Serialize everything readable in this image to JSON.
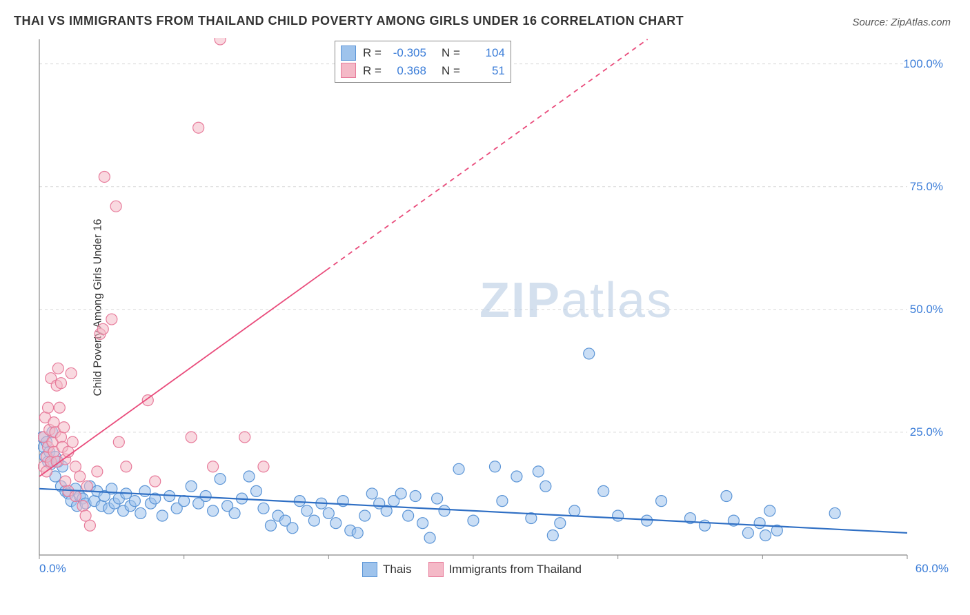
{
  "title": "THAI VS IMMIGRANTS FROM THAILAND CHILD POVERTY AMONG GIRLS UNDER 16 CORRELATION CHART",
  "source": "Source: ZipAtlas.com",
  "ylabel": "Child Poverty Among Girls Under 16",
  "watermark": {
    "bold": "ZIP",
    "thin": "atlas"
  },
  "chart": {
    "type": "scatter",
    "xlim": [
      0,
      60
    ],
    "ylim": [
      0,
      105
    ],
    "yticks": [
      25,
      50,
      75,
      100
    ],
    "ytick_labels": [
      "25.0%",
      "50.0%",
      "75.0%",
      "100.0%"
    ],
    "xticks": [
      0,
      10,
      20,
      30,
      40,
      50,
      60
    ],
    "xtick_labels": [
      "0.0%",
      "",
      "",
      "",
      "",
      "",
      "60.0%"
    ],
    "grid_color": "#d9d9d9",
    "grid_dash": "4,4",
    "axis_color": "#888888",
    "background_color": "#ffffff",
    "marker_radius": 8,
    "marker_opacity": 0.55,
    "series": [
      {
        "name": "Thais",
        "color_fill": "#9ec3ec",
        "color_stroke": "#5a94d6",
        "trend": {
          "y_at_x0": 13.5,
          "y_at_xmax": 4.5,
          "dash": "none",
          "width": 2.2,
          "color": "#2f6fc4"
        },
        "points": [
          [
            0.2,
            24
          ],
          [
            0.3,
            22
          ],
          [
            0.4,
            20
          ],
          [
            0.5,
            23
          ],
          [
            0.6,
            19
          ],
          [
            0.7,
            21
          ],
          [
            0.8,
            18.5
          ],
          [
            0.9,
            25
          ],
          [
            1.1,
            20
          ],
          [
            1.1,
            16
          ],
          [
            1.3,
            19
          ],
          [
            1.5,
            14
          ],
          [
            1.6,
            18
          ],
          [
            1.8,
            13
          ],
          [
            2.0,
            12.5
          ],
          [
            2.2,
            11
          ],
          [
            2.5,
            13.5
          ],
          [
            2.6,
            10
          ],
          [
            2.8,
            12
          ],
          [
            3.0,
            11.5
          ],
          [
            3.2,
            10.5
          ],
          [
            3.5,
            14
          ],
          [
            3.8,
            11
          ],
          [
            4.0,
            13
          ],
          [
            4.3,
            10
          ],
          [
            4.5,
            12
          ],
          [
            4.8,
            9.5
          ],
          [
            5.0,
            13.5
          ],
          [
            5.2,
            10.5
          ],
          [
            5.5,
            11.5
          ],
          [
            5.8,
            9
          ],
          [
            6.0,
            12.5
          ],
          [
            6.3,
            10
          ],
          [
            6.6,
            11
          ],
          [
            7.0,
            8.5
          ],
          [
            7.3,
            13
          ],
          [
            7.7,
            10.5
          ],
          [
            8.0,
            11.5
          ],
          [
            8.5,
            8
          ],
          [
            9.0,
            12
          ],
          [
            9.5,
            9.5
          ],
          [
            10,
            11
          ],
          [
            10.5,
            14
          ],
          [
            11,
            10.5
          ],
          [
            11.5,
            12
          ],
          [
            12,
            9
          ],
          [
            12.5,
            15.5
          ],
          [
            13,
            10
          ],
          [
            13.5,
            8.5
          ],
          [
            14,
            11.5
          ],
          [
            14.5,
            16
          ],
          [
            15,
            13
          ],
          [
            15.5,
            9.5
          ],
          [
            16,
            6
          ],
          [
            16.5,
            8
          ],
          [
            17,
            7
          ],
          [
            17.5,
            5.5
          ],
          [
            18,
            11
          ],
          [
            18.5,
            9
          ],
          [
            19,
            7
          ],
          [
            19.5,
            10.5
          ],
          [
            20,
            8.5
          ],
          [
            20.5,
            6.5
          ],
          [
            21,
            11
          ],
          [
            21.5,
            5
          ],
          [
            22,
            4.5
          ],
          [
            22.5,
            8
          ],
          [
            23,
            12.5
          ],
          [
            23.5,
            10.5
          ],
          [
            24,
            9
          ],
          [
            24.5,
            11
          ],
          [
            25,
            12.5
          ],
          [
            25.5,
            8
          ],
          [
            26,
            12
          ],
          [
            26.5,
            6.5
          ],
          [
            27,
            3.5
          ],
          [
            27.5,
            11.5
          ],
          [
            28,
            9
          ],
          [
            29,
            17.5
          ],
          [
            30,
            7
          ],
          [
            31.5,
            18
          ],
          [
            32,
            11
          ],
          [
            33,
            16
          ],
          [
            34,
            7.5
          ],
          [
            34.5,
            17
          ],
          [
            35,
            14
          ],
          [
            35.5,
            4
          ],
          [
            36,
            6.5
          ],
          [
            37,
            9
          ],
          [
            38,
            41
          ],
          [
            39,
            13
          ],
          [
            40,
            8
          ],
          [
            42,
            7
          ],
          [
            43,
            11
          ],
          [
            45,
            7.5
          ],
          [
            46,
            6
          ],
          [
            47.5,
            12
          ],
          [
            48,
            7
          ],
          [
            49,
            4.5
          ],
          [
            49.8,
            6.5
          ],
          [
            50.2,
            4
          ],
          [
            50.5,
            9
          ],
          [
            51,
            5
          ],
          [
            55,
            8.5
          ]
        ]
      },
      {
        "name": "Immigrants from Thailand",
        "color_fill": "#f4b9c7",
        "color_stroke": "#e77a9a",
        "trend": {
          "y_at_x0": 16,
          "y_at_xmax": 143,
          "dash_above_y": 58,
          "dash": "7,6",
          "width": 1.8,
          "color": "#e94b7b"
        },
        "points": [
          [
            0.3,
            18
          ],
          [
            0.3,
            24
          ],
          [
            0.4,
            28
          ],
          [
            0.5,
            20
          ],
          [
            0.5,
            17
          ],
          [
            0.6,
            30
          ],
          [
            0.6,
            22
          ],
          [
            0.7,
            25.5
          ],
          [
            0.8,
            19
          ],
          [
            0.8,
            36
          ],
          [
            0.9,
            23
          ],
          [
            1.0,
            27
          ],
          [
            1.0,
            21
          ],
          [
            1.1,
            25
          ],
          [
            1.2,
            19
          ],
          [
            1.2,
            34.5
          ],
          [
            1.3,
            38
          ],
          [
            1.4,
            30
          ],
          [
            1.5,
            24
          ],
          [
            1.5,
            35
          ],
          [
            1.6,
            22
          ],
          [
            1.7,
            26
          ],
          [
            1.8,
            15
          ],
          [
            1.8,
            19.5
          ],
          [
            2.0,
            13
          ],
          [
            2.0,
            21
          ],
          [
            2.2,
            37
          ],
          [
            2.3,
            23
          ],
          [
            2.5,
            18
          ],
          [
            2.5,
            12
          ],
          [
            2.8,
            16
          ],
          [
            3.0,
            10
          ],
          [
            3.2,
            8
          ],
          [
            3.3,
            14
          ],
          [
            3.5,
            6
          ],
          [
            4.0,
            17
          ],
          [
            4.2,
            45
          ],
          [
            4.4,
            46
          ],
          [
            4.5,
            77
          ],
          [
            5.0,
            48
          ],
          [
            5.3,
            71
          ],
          [
            5.5,
            23
          ],
          [
            6.0,
            18
          ],
          [
            7.5,
            31.5
          ],
          [
            8.0,
            15
          ],
          [
            10.5,
            24
          ],
          [
            11,
            87
          ],
          [
            12,
            18
          ],
          [
            12.5,
            105
          ],
          [
            14.2,
            24
          ],
          [
            15.5,
            18
          ]
        ]
      }
    ]
  },
  "stats_box": {
    "rows": [
      {
        "swatch_fill": "#9ec3ec",
        "swatch_stroke": "#5a94d6",
        "r": "-0.305",
        "n": "104"
      },
      {
        "swatch_fill": "#f4b9c7",
        "swatch_stroke": "#e77a9a",
        "r": "0.368",
        "n": "51"
      }
    ],
    "r_label": "R =",
    "n_label": "N ="
  },
  "bottom_legend": {
    "items": [
      {
        "swatch_fill": "#9ec3ec",
        "swatch_stroke": "#5a94d6",
        "label": "Thais"
      },
      {
        "swatch_fill": "#f4b9c7",
        "swatch_stroke": "#e77a9a",
        "label": "Immigrants from Thailand"
      }
    ]
  }
}
